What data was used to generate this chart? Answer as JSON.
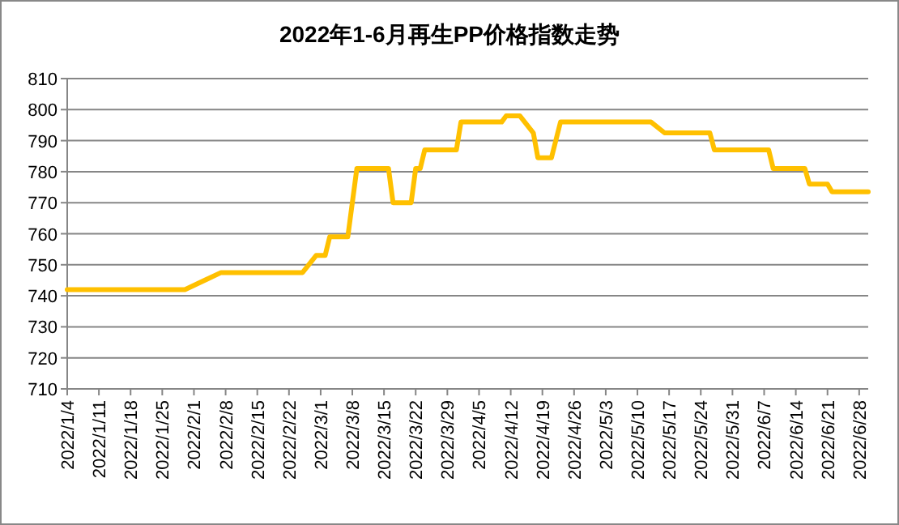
{
  "chart_data": {
    "type": "line",
    "title": "2022年1-6月再生PP价格指数走势",
    "x": [
      "2022-01-04",
      "2022-01-30",
      "2022-02-07",
      "2022-02-25",
      "2022-02-28",
      "2022-03-02",
      "2022-03-03",
      "2022-03-07",
      "2022-03-09",
      "2022-03-16",
      "2022-03-17",
      "2022-03-21",
      "2022-03-22",
      "2022-03-23",
      "2022-03-24",
      "2022-03-31",
      "2022-04-01",
      "2022-04-10",
      "2022-04-11",
      "2022-04-14",
      "2022-04-17",
      "2022-04-18",
      "2022-04-21",
      "2022-04-23",
      "2022-05-13",
      "2022-05-16",
      "2022-05-26",
      "2022-05-27",
      "2022-06-08",
      "2022-06-09",
      "2022-06-16",
      "2022-06-17",
      "2022-06-21",
      "2022-06-22",
      "2022-06-30"
    ],
    "series": [
      {
        "color": "#ffc000",
        "values": [
          742,
          742,
          747.5,
          747.5,
          753,
          753,
          759,
          759,
          781,
          781,
          770,
          770,
          781,
          781,
          787,
          787,
          796,
          796,
          798,
          798,
          792.5,
          784.5,
          784.5,
          796,
          796,
          792.5,
          792.5,
          787,
          787,
          781,
          781,
          776,
          776,
          773.5,
          773.5
        ]
      }
    ],
    "xlim": [
      "2022-01-04",
      "2022-06-30"
    ],
    "xticks": [
      {
        "value": "2022-01-04",
        "label": "2022/1/4"
      },
      {
        "value": "2022-01-11",
        "label": "2022/1/11"
      },
      {
        "value": "2022-01-18",
        "label": "2022/1/18"
      },
      {
        "value": "2022-01-25",
        "label": "2022/1/25"
      },
      {
        "value": "2022-02-01",
        "label": "2022/2/1"
      },
      {
        "value": "2022-02-08",
        "label": "2022/2/8"
      },
      {
        "value": "2022-02-15",
        "label": "2022/2/15"
      },
      {
        "value": "2022-02-22",
        "label": "2022/2/22"
      },
      {
        "value": "2022-03-01",
        "label": "2022/3/1"
      },
      {
        "value": "2022-03-08",
        "label": "2022/3/8"
      },
      {
        "value": "2022-03-15",
        "label": "2022/3/15"
      },
      {
        "value": "2022-03-22",
        "label": "2022/3/22"
      },
      {
        "value": "2022-03-29",
        "label": "2022/3/29"
      },
      {
        "value": "2022-04-05",
        "label": "2022/4/5"
      },
      {
        "value": "2022-04-12",
        "label": "2022/4/12"
      },
      {
        "value": "2022-04-19",
        "label": "2022/4/19"
      },
      {
        "value": "2022-04-26",
        "label": "2022/4/26"
      },
      {
        "value": "2022-05-03",
        "label": "2022/5/3"
      },
      {
        "value": "2022-05-10",
        "label": "2022/5/10"
      },
      {
        "value": "2022-05-17",
        "label": "2022/5/17"
      },
      {
        "value": "2022-05-24",
        "label": "2022/5/24"
      },
      {
        "value": "2022-05-31",
        "label": "2022/5/31"
      },
      {
        "value": "2022-06-07",
        "label": "2022/6/7"
      },
      {
        "value": "2022-06-14",
        "label": "2022/6/14"
      },
      {
        "value": "2022-06-21",
        "label": "2022/6/21"
      },
      {
        "value": "2022-06-28",
        "label": "2022/6/28"
      }
    ],
    "ylim": [
      710,
      810
    ],
    "yticks": [
      710,
      720,
      730,
      740,
      750,
      760,
      770,
      780,
      790,
      800,
      810
    ],
    "grid": "y",
    "marker": "none",
    "line_style": "solid"
  }
}
